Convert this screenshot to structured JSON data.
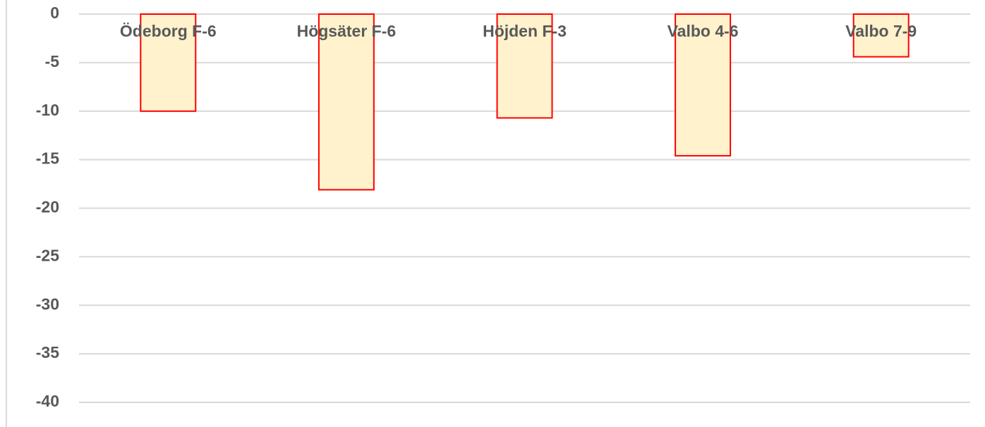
{
  "chart_data": {
    "type": "bar",
    "categories": [
      "Ödeborg F-6",
      "Högsäter F-6",
      "Höjden F-3",
      "Valbo 4-6",
      "Valbo 7-9"
    ],
    "values": [
      -10,
      -18.1,
      -10.7,
      -14.6,
      -4.4
    ],
    "color": "#fff2cc",
    "edge_color": "#ff0000",
    "ylim": [
      -40,
      0
    ],
    "yticks": [
      0,
      -5,
      -10,
      -15,
      -20,
      -25,
      -30,
      -35,
      -40
    ],
    "grid": true
  }
}
